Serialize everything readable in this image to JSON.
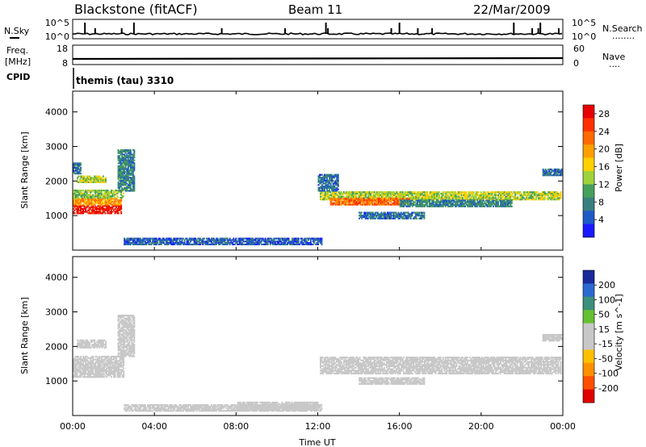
{
  "header": {
    "radar_title": "Blackstone (fitACF)",
    "beam_label": "Beam 11",
    "date_label": "22/Mar/2009"
  },
  "summary_panels": {
    "nsky_label": "N.Sky",
    "nsearch_label": "N.Search",
    "nsearch_dots": "........",
    "noise_ticks": [
      "10^5",
      "10^0"
    ],
    "noise_ticks_right": [
      "10^5",
      "10^0"
    ],
    "freq_label_line1": "Freq.",
    "freq_label_line2": "[MHz]",
    "freq_ticks": [
      "18",
      "8"
    ],
    "nave_label": "Nave",
    "nave_dots": "....",
    "nave_ticks": [
      "60",
      "0"
    ],
    "cpid_label": "CPID",
    "cpid_text": "themis (tau) 3310"
  },
  "colors": {
    "power_scale": [
      "#1a1aff",
      "#1e5bc8",
      "#3a7f7f",
      "#46a05a",
      "#9fd23a",
      "#ffd000",
      "#ffa000",
      "#ff6a00",
      "#ff3000",
      "#e60000"
    ],
    "velocity_scale": [
      "#1a2a9a",
      "#2b6ad0",
      "#3c8f7a",
      "#66c030",
      "#c8c8c8",
      "#c8c8c8",
      "#ffc000",
      "#ff9000",
      "#ff5000",
      "#e00000"
    ],
    "ground_scatter": "#c8c8c8"
  },
  "chart_data": [
    {
      "type": "heatmap",
      "title": "",
      "xlabel": "Time UT",
      "ylabel": "Slant Range [km]",
      "x_ticks": [
        "00:00",
        "04:00",
        "08:00",
        "12:00",
        "16:00",
        "20:00",
        "00:00"
      ],
      "y_ticks": [
        "1000",
        "2000",
        "3000",
        "4000"
      ],
      "ylim": [
        0,
        4600
      ],
      "colorbar_label": "Power [dB]",
      "colorbar_ticks": [
        "4",
        "8",
        "12",
        "16",
        "20",
        "24",
        "28"
      ],
      "colorbar_range": [
        0,
        30
      ],
      "regions": [
        {
          "t": [
            0.0,
            2.4
          ],
          "r": [
            1050,
            1300
          ],
          "value": 28
        },
        {
          "t": [
            0.0,
            2.4
          ],
          "r": [
            1300,
            1500
          ],
          "value": 20
        },
        {
          "t": [
            0.0,
            2.5
          ],
          "r": [
            1500,
            1750
          ],
          "value": 12
        },
        {
          "t": [
            0.2,
            1.6
          ],
          "r": [
            1950,
            2150
          ],
          "value": 14
        },
        {
          "t": [
            0.0,
            0.4
          ],
          "r": [
            2200,
            2500
          ],
          "value": 6
        },
        {
          "t": [
            2.2,
            3.0
          ],
          "r": [
            1700,
            2900
          ],
          "value": 8
        },
        {
          "t": [
            12.1,
            23.9
          ],
          "r": [
            1450,
            1700
          ],
          "value": 14
        },
        {
          "t": [
            12.6,
            16.5
          ],
          "r": [
            1300,
            1500
          ],
          "value": 22
        },
        {
          "t": [
            14.0,
            17.2
          ],
          "r": [
            900,
            1100
          ],
          "value": 6
        },
        {
          "t": [
            12.0,
            13.0
          ],
          "r": [
            1700,
            2200
          ],
          "value": 6
        },
        {
          "t": [
            16.0,
            21.5
          ],
          "r": [
            1250,
            1450
          ],
          "value": 8
        },
        {
          "t": [
            23.0,
            23.9
          ],
          "r": [
            2150,
            2350
          ],
          "value": 6
        },
        {
          "t": [
            2.5,
            12.2
          ],
          "r": [
            150,
            320
          ],
          "value": 5
        }
      ]
    },
    {
      "type": "heatmap",
      "title": "",
      "xlabel": "Time UT",
      "ylabel": "Slant Range [km]",
      "x_ticks": [
        "00:00",
        "04:00",
        "08:00",
        "12:00",
        "16:00",
        "20:00",
        "00:00"
      ],
      "y_ticks": [
        "1000",
        "2000",
        "3000",
        "4000"
      ],
      "ylim": [
        0,
        4600
      ],
      "colorbar_label": "Velocity [m s^-1]",
      "colorbar_ticks": [
        "200",
        "100",
        "50",
        "15",
        "-15",
        "-50",
        "-100",
        "-200"
      ],
      "colorbar_range": [
        -250,
        250
      ],
      "regions": [
        {
          "t": [
            0.0,
            2.5
          ],
          "r": [
            1100,
            1700
          ],
          "value": 0
        },
        {
          "t": [
            0.2,
            1.6
          ],
          "r": [
            1950,
            2200
          ],
          "value": -40
        },
        {
          "t": [
            2.2,
            3.0
          ],
          "r": [
            1700,
            2900
          ],
          "value": 0
        },
        {
          "t": [
            12.1,
            23.9
          ],
          "r": [
            1200,
            1700
          ],
          "value": 0
        },
        {
          "t": [
            14.0,
            17.2
          ],
          "r": [
            900,
            1100
          ],
          "value": 0
        },
        {
          "t": [
            23.0,
            23.9
          ],
          "r": [
            2150,
            2350
          ],
          "value": -40
        },
        {
          "t": [
            2.5,
            12.2
          ],
          "r": [
            120,
            320
          ],
          "value": -30
        },
        {
          "t": [
            8.0,
            12.0
          ],
          "r": [
            150,
            380
          ],
          "value": -40
        }
      ]
    }
  ]
}
